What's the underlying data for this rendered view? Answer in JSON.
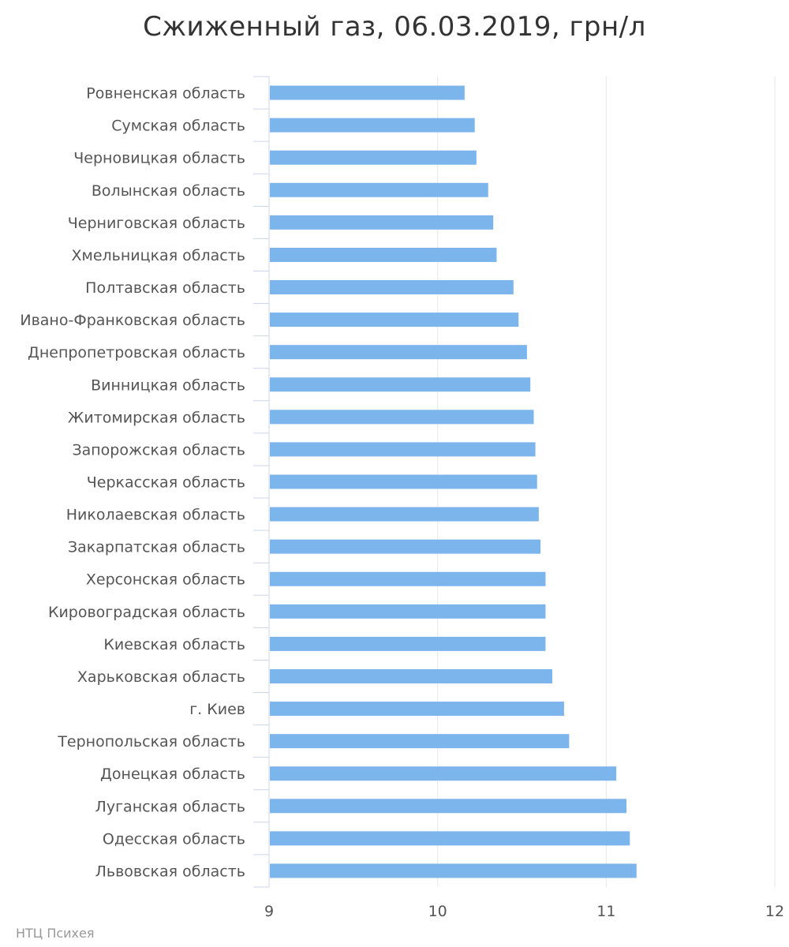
{
  "chart_data": {
    "type": "bar",
    "orientation": "horizontal",
    "title": "Сжиженный газ, 06.03.2019, грн/л",
    "categories": [
      "Ровненская область",
      "Сумская область",
      "Черновицкая область",
      "Волынская область",
      "Черниговская область",
      "Хмельницкая область",
      "Полтавская область",
      "Ивано-Франковская область",
      "Днепропетровская область",
      "Винницкая область",
      "Житомирская область",
      "Запорожская область",
      "Черкасская область",
      "Николаевская область",
      "Закарпатская область",
      "Херсонская область",
      "Кировоградская область",
      "Киевская область",
      "Харьковская область",
      "г. Киев",
      "Тернопольская область",
      "Донецкая область",
      "Луганская область",
      "Одесская область",
      "Львовская область"
    ],
    "values": [
      10.16,
      10.22,
      10.23,
      10.3,
      10.33,
      10.35,
      10.45,
      10.48,
      10.53,
      10.55,
      10.57,
      10.58,
      10.59,
      10.6,
      10.61,
      10.64,
      10.64,
      10.64,
      10.68,
      10.75,
      10.78,
      11.06,
      11.12,
      11.14,
      11.18
    ],
    "xlim": [
      9,
      12
    ],
    "xticks": [
      "9",
      "10",
      "11",
      "12"
    ],
    "grid": true,
    "bar_color": "#7cb5ec",
    "grid_color": "#e6e6e6",
    "axis_color": "#ccd6eb"
  },
  "credit": "НТЦ Психея"
}
